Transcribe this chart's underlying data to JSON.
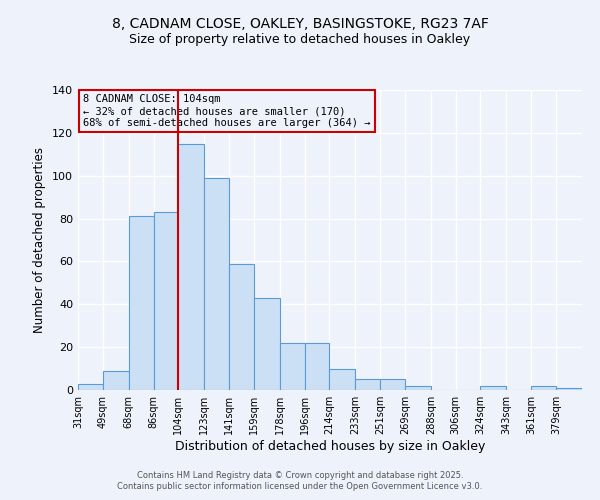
{
  "title1": "8, CADNAM CLOSE, OAKLEY, BASINGSTOKE, RG23 7AF",
  "title2": "Size of property relative to detached houses in Oakley",
  "xlabel": "Distribution of detached houses by size in Oakley",
  "ylabel": "Number of detached properties",
  "bins": [
    31,
    49,
    68,
    86,
    104,
    123,
    141,
    159,
    178,
    196,
    214,
    233,
    251,
    269,
    288,
    306,
    324,
    343,
    361,
    379,
    398
  ],
  "counts": [
    3,
    9,
    81,
    83,
    115,
    99,
    59,
    43,
    22,
    22,
    10,
    5,
    5,
    2,
    0,
    0,
    2,
    0,
    2,
    1
  ],
  "bar_facecolor": "#cce0f5",
  "bar_edgecolor": "#5b9bd5",
  "vline_x": 104,
  "vline_color": "#cc0000",
  "annotation_title": "8 CADNAM CLOSE: 104sqm",
  "annotation_line1": "← 32% of detached houses are smaller (170)",
  "annotation_line2": "68% of semi-detached houses are larger (364) →",
  "annotation_box_edgecolor": "#cc0000",
  "ylim": [
    0,
    140
  ],
  "yticks": [
    0,
    20,
    40,
    60,
    80,
    100,
    120,
    140
  ],
  "background_color": "#eef2fb",
  "grid_color": "#ffffff",
  "footer1": "Contains HM Land Registry data © Crown copyright and database right 2025.",
  "footer2": "Contains public sector information licensed under the Open Government Licence v3.0."
}
